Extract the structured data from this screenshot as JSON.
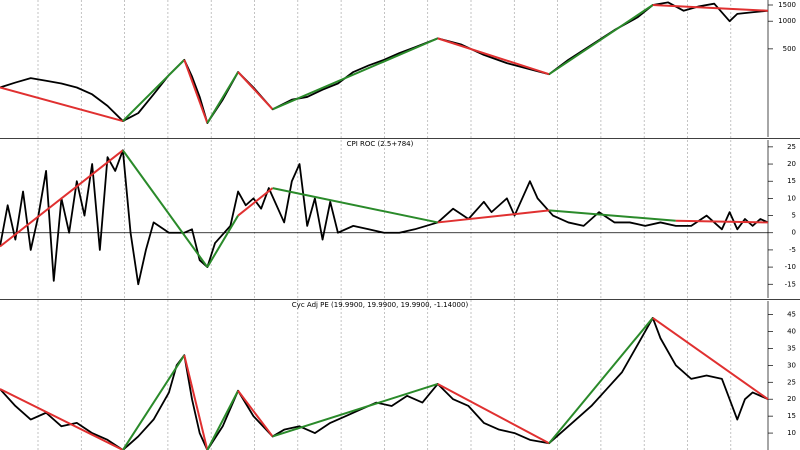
{
  "chart_data": [
    {
      "type": "line",
      "log_scale": true,
      "color": "#000000",
      "x": [
        0,
        2,
        4,
        6,
        8,
        10,
        12,
        14,
        16,
        18,
        20,
        22,
        24,
        25,
        26,
        27,
        29,
        31,
        33,
        35.5,
        38,
        40,
        42,
        44,
        46,
        48,
        50,
        52,
        54,
        57,
        60,
        63,
        66,
        69,
        71.5,
        74,
        77,
        80,
        83,
        85,
        87,
        89,
        91,
        93,
        95,
        96,
        98,
        100
      ],
      "values": [
        190,
        215,
        240,
        225,
        210,
        190,
        160,
        120,
        82,
        100,
        160,
        260,
        380,
        250,
        150,
        78,
        140,
        280,
        190,
        110,
        140,
        150,
        180,
        210,
        280,
        330,
        380,
        450,
        520,
        650,
        560,
        430,
        350,
        300,
        265,
        380,
        550,
        800,
        1100,
        1500,
        1600,
        1300,
        1450,
        1550,
        1000,
        1200,
        1250,
        1300
      ],
      "trends": [
        {
          "color": "#e03030",
          "x": [
            0,
            16
          ],
          "values": [
            190,
            82
          ]
        },
        {
          "color": "#2a8a2a",
          "x": [
            16,
            24
          ],
          "values": [
            82,
            380
          ]
        },
        {
          "color": "#e03030",
          "x": [
            24,
            27
          ],
          "values": [
            380,
            78
          ]
        },
        {
          "color": "#2a8a2a",
          "x": [
            27,
            31
          ],
          "values": [
            78,
            280
          ]
        },
        {
          "color": "#e03030",
          "x": [
            31,
            35.5
          ],
          "values": [
            280,
            110
          ]
        },
        {
          "color": "#2a8a2a",
          "x": [
            35.5,
            57
          ],
          "values": [
            110,
            650
          ]
        },
        {
          "color": "#e03030",
          "x": [
            57,
            71.5
          ],
          "values": [
            650,
            265
          ]
        },
        {
          "color": "#2a8a2a",
          "x": [
            71.5,
            85
          ],
          "values": [
            265,
            1500
          ]
        },
        {
          "color": "#e03030",
          "x": [
            85,
            100
          ],
          "values": [
            1500,
            1300
          ]
        }
      ],
      "xlim": [
        0,
        100
      ],
      "ylim": [
        55,
        1700
      ],
      "yticks": [
        500,
        1000,
        1500
      ]
    },
    {
      "type": "line",
      "title": "CPI ROC (2.5+784)",
      "color": "#000000",
      "reference_line": 0,
      "x": [
        0,
        1,
        2,
        3,
        4,
        5,
        6,
        7,
        8,
        9,
        10,
        11,
        12,
        13,
        14,
        15,
        16,
        17,
        18,
        19,
        20,
        22,
        24,
        25,
        26,
        27,
        28,
        30,
        31,
        32,
        33,
        34,
        35,
        36,
        37,
        38,
        39,
        40,
        41,
        42,
        43,
        44,
        46,
        48,
        50,
        52,
        54,
        57,
        59,
        61,
        63,
        64,
        66,
        67,
        69,
        70,
        72,
        74,
        76,
        78,
        80,
        82,
        84,
        86,
        88,
        90,
        92,
        94,
        95,
        96,
        97,
        98,
        99,
        100
      ],
      "values": [
        -4,
        8,
        -2,
        12,
        -5,
        5,
        18,
        -14,
        10,
        0,
        15,
        5,
        20,
        -5,
        22,
        18,
        24,
        0,
        -15,
        -5,
        3,
        0,
        0,
        1,
        -8,
        -10,
        -3,
        2,
        12,
        8,
        10,
        7,
        13,
        8,
        3,
        15,
        20,
        2,
        10,
        -2,
        9,
        0,
        2,
        1,
        0,
        0,
        1,
        3,
        7,
        4,
        9,
        6,
        10,
        5,
        15,
        10,
        5,
        3,
        2,
        6,
        3,
        3,
        2,
        3,
        2,
        2,
        5,
        1,
        6,
        1,
        4,
        2,
        4,
        3
      ],
      "trends": [
        {
          "color": "#e03030",
          "x": [
            0,
            16
          ],
          "values": [
            -4,
            24
          ]
        },
        {
          "color": "#2a8a2a",
          "x": [
            16,
            27
          ],
          "values": [
            24,
            -10
          ]
        },
        {
          "color": "#2a8a2a",
          "x": [
            27,
            31
          ],
          "values": [
            -10,
            5
          ]
        },
        {
          "color": "#e03030",
          "x": [
            31,
            35.5
          ],
          "values": [
            5,
            13
          ]
        },
        {
          "color": "#2a8a2a",
          "x": [
            35.5,
            57
          ],
          "values": [
            13,
            3
          ]
        },
        {
          "color": "#e03030",
          "x": [
            57,
            71.5
          ],
          "values": [
            3,
            6.5
          ]
        },
        {
          "color": "#2a8a2a",
          "x": [
            71.5,
            88
          ],
          "values": [
            6.5,
            3.5
          ]
        },
        {
          "color": "#e03030",
          "x": [
            88,
            100
          ],
          "values": [
            3.5,
            3
          ]
        }
      ],
      "xlim": [
        0,
        100
      ],
      "ylim": [
        -19,
        27
      ],
      "yticks": [
        25,
        20,
        15,
        10,
        5,
        0,
        -5,
        -10,
        -15
      ]
    },
    {
      "type": "line",
      "title": "Cyc Adj PE (19.9900, 19.9900, 19.9900, -1.14000)",
      "color": "#000000",
      "x": [
        0,
        2,
        4,
        6,
        8,
        10,
        12,
        14,
        16,
        18,
        20,
        22,
        23,
        24,
        25,
        26,
        27,
        29,
        31,
        33,
        35.5,
        37,
        39,
        41,
        43,
        45,
        47,
        49,
        51,
        53,
        55,
        57,
        59,
        61,
        63,
        65,
        67,
        69,
        71.5,
        73,
        75,
        77,
        79,
        81,
        83,
        85,
        86,
        88,
        90,
        92,
        94,
        95,
        96,
        97,
        98,
        100
      ],
      "values": [
        23,
        18,
        14,
        16,
        12,
        13,
        10,
        8,
        5,
        9,
        14,
        22,
        30,
        33,
        20,
        10,
        5,
        12,
        22.5,
        15,
        9,
        11,
        12,
        10,
        13,
        15,
        17,
        19,
        18,
        21,
        19,
        24.5,
        20,
        18,
        13,
        11,
        10,
        8,
        7,
        10,
        14,
        18,
        23,
        28,
        36,
        44,
        38,
        30,
        26,
        27,
        26,
        20,
        14,
        20,
        22,
        20
      ],
      "trends": [
        {
          "color": "#e03030",
          "x": [
            0,
            16
          ],
          "values": [
            23,
            5
          ]
        },
        {
          "color": "#2a8a2a",
          "x": [
            16,
            24
          ],
          "values": [
            5,
            33
          ]
        },
        {
          "color": "#e03030",
          "x": [
            24,
            27
          ],
          "values": [
            33,
            5
          ]
        },
        {
          "color": "#2a8a2a",
          "x": [
            27,
            31
          ],
          "values": [
            5,
            22.5
          ]
        },
        {
          "color": "#e03030",
          "x": [
            31,
            35.5
          ],
          "values": [
            22.5,
            9
          ]
        },
        {
          "color": "#2a8a2a",
          "x": [
            35.5,
            57
          ],
          "values": [
            9,
            24.5
          ]
        },
        {
          "color": "#e03030",
          "x": [
            57,
            71.5
          ],
          "values": [
            24.5,
            7
          ]
        },
        {
          "color": "#2a8a2a",
          "x": [
            71.5,
            85
          ],
          "values": [
            7,
            44
          ]
        },
        {
          "color": "#e03030",
          "x": [
            85,
            100
          ],
          "values": [
            44,
            20
          ]
        }
      ],
      "xlim": [
        0,
        100
      ],
      "ylim": [
        5,
        49
      ],
      "yticks": [
        45,
        40,
        35,
        30,
        25,
        20,
        15,
        10
      ]
    }
  ]
}
